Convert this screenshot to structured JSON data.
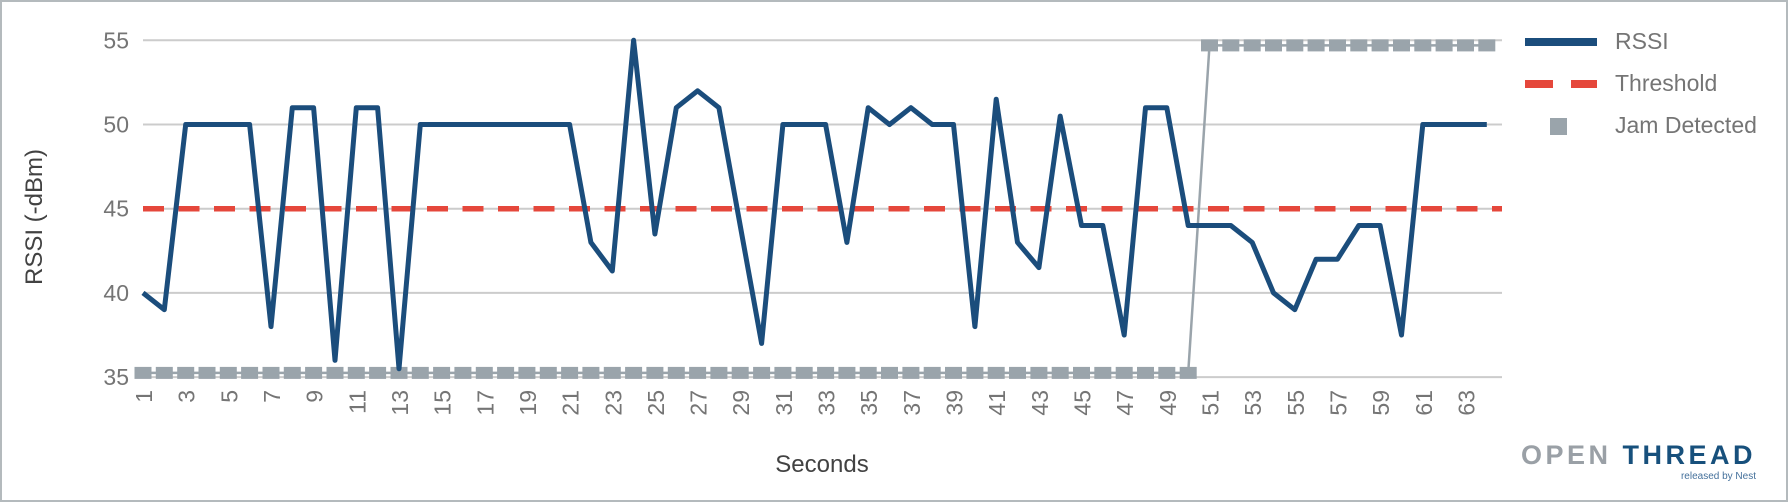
{
  "chart_data": {
    "type": "line",
    "title": "",
    "xlabel": "Seconds",
    "ylabel": "RSSI (-dBm)",
    "grid": true,
    "legend_position": "right",
    "x_ticks": [
      1,
      3,
      5,
      7,
      9,
      11,
      13,
      15,
      17,
      19,
      21,
      23,
      25,
      27,
      29,
      31,
      33,
      35,
      37,
      39,
      41,
      43,
      45,
      47,
      49,
      51,
      53,
      55,
      57,
      59,
      61,
      63
    ],
    "y_ticks": [
      55,
      50,
      45,
      40,
      35
    ],
    "ylim": [
      35,
      55
    ],
    "x_start": 1,
    "series": [
      {
        "name": "RSSI",
        "type": "line",
        "color": "#1b4d7c",
        "values": [
          40,
          39,
          50,
          50,
          50,
          50,
          38,
          51,
          51,
          36,
          51,
          51,
          35.5,
          50,
          50,
          50,
          50,
          50,
          50,
          50,
          50,
          43,
          41.3,
          55,
          43.5,
          51,
          52,
          51,
          44,
          37,
          50,
          50,
          50,
          43,
          51,
          50,
          51,
          50,
          50,
          38,
          51.5,
          43,
          41.5,
          50.5,
          44,
          44,
          37.5,
          51,
          51,
          44,
          44,
          44,
          43,
          40,
          39,
          42,
          42,
          44,
          44,
          37.5,
          50,
          50,
          50,
          50
        ]
      },
      {
        "name": "Threshold",
        "type": "dashed_line",
        "color": "#e5473b",
        "value": 45
      },
      {
        "name": "Jam Detected",
        "type": "step_with_square_markers",
        "color": "#9aa4ab",
        "low_value": 35.25,
        "high_value": 54.7,
        "low_range": [
          1,
          50
        ],
        "high_range": [
          51,
          64
        ]
      }
    ]
  },
  "legend": {
    "items": [
      {
        "label": "RSSI",
        "swatch": "line",
        "color": "#1b4d7c"
      },
      {
        "label": "Threshold",
        "swatch": "dashes",
        "color": "#e5473b"
      },
      {
        "label": "Jam Detected",
        "swatch": "square",
        "color": "#9aa4ab"
      }
    ]
  },
  "branding": {
    "logo_open": "OPEN",
    "logo_thread": "THREAD",
    "tagline": "released by Nest",
    "color_open": "#9aa0a6",
    "color_thread": "#17507c"
  },
  "colors": {
    "gridline": "#cccccc",
    "tick_text": "#757575",
    "axis_title_text": "#424242"
  }
}
